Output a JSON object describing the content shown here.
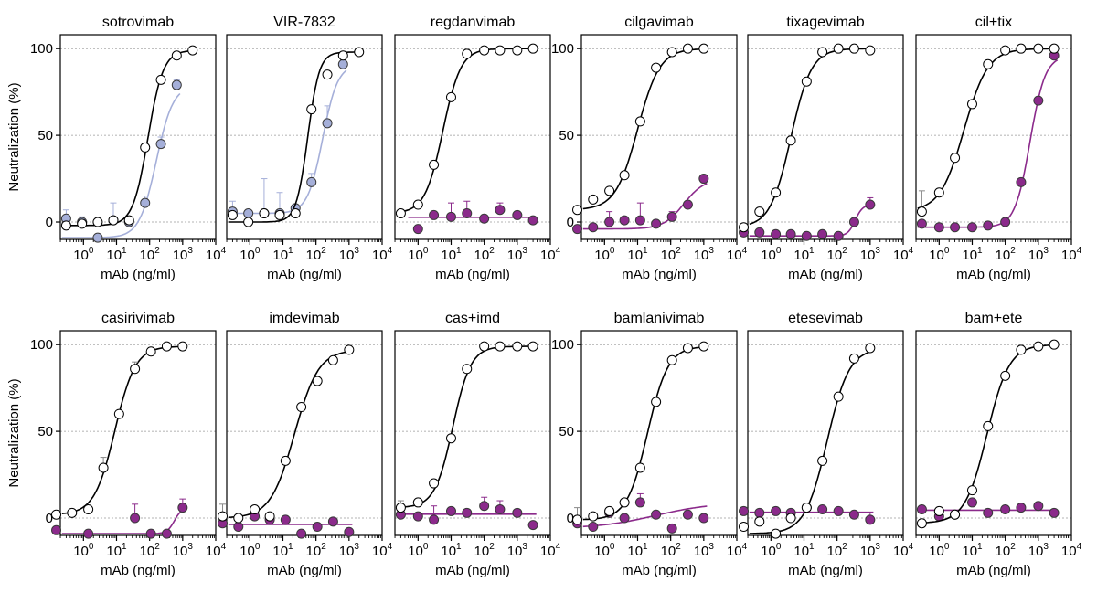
{
  "y_axis": {
    "label": "Neutralization (%)",
    "ticks": [
      "0",
      "50",
      "100"
    ],
    "tick_values": [
      0,
      50,
      100
    ],
    "ylim": [
      -10,
      108
    ]
  },
  "x_axis": {
    "label": "mAb (ng/ml)",
    "base": "10",
    "exponents": [
      "0",
      "1",
      "2",
      "3",
      "4"
    ],
    "scale": "log"
  },
  "colors": {
    "control": "#ffffff",
    "mutant": "#8b2a8b",
    "mutant_alt": "#9ea8d6",
    "curve_control": "#000000",
    "gridline": "#9a9a9a"
  },
  "chart_data": [
    {
      "type": "scatter",
      "title": "sotrovimab",
      "series": [
        {
          "fill": "open",
          "line": "#000000",
          "x": [
            0.3,
            0.9,
            2.7,
            8,
            24,
            73,
            220,
            660,
            2000
          ],
          "y": [
            -2,
            -1,
            0,
            1,
            1,
            43,
            82,
            96,
            99
          ],
          "err": [
            0,
            0,
            0,
            0,
            0,
            0,
            0,
            0,
            0
          ]
        },
        {
          "fill": "#a5afd9",
          "line": "#a5afd9",
          "x": [
            0.3,
            0.9,
            2.7,
            8,
            24,
            73,
            220,
            660
          ],
          "y": [
            2,
            0,
            -9,
            1,
            0,
            11,
            45,
            79
          ],
          "err": [
            5,
            3,
            0,
            10,
            0,
            4,
            4,
            3
          ]
        }
      ]
    },
    {
      "type": "scatter",
      "title": "VIR-7832",
      "series": [
        {
          "fill": "open",
          "line": "#000000",
          "x": [
            0.3,
            0.9,
            2.7,
            8,
            24,
            73,
            220,
            660,
            2000
          ],
          "y": [
            4,
            0,
            5,
            4,
            5,
            65,
            85,
            96,
            98
          ],
          "err": [
            0,
            0,
            0,
            0,
            0,
            0,
            0,
            0,
            0
          ]
        },
        {
          "fill": "#a5afd9",
          "line": "#a5afd9",
          "x": [
            0.3,
            0.9,
            2.7,
            8,
            24,
            73,
            220,
            660
          ],
          "y": [
            6,
            5,
            5,
            5,
            8,
            23,
            57,
            91
          ],
          "err": [
            6,
            0,
            20,
            12,
            0,
            5,
            10,
            5
          ]
        }
      ]
    },
    {
      "type": "scatter",
      "title": "regdanvimab",
      "series": [
        {
          "fill": "open",
          "line": "#000000",
          "x": [
            0.3,
            1,
            3,
            10,
            30,
            100,
            300,
            1000,
            3000
          ],
          "y": [
            5,
            10,
            33,
            72,
            97,
            99,
            99,
            99,
            100
          ],
          "err": [
            0,
            0,
            0,
            0,
            0,
            0,
            0,
            0,
            0
          ]
        },
        {
          "fill": "#8b2a8b",
          "line": "#8b2a8b",
          "x": [
            1,
            3,
            10,
            30,
            100,
            300,
            1000,
            3000
          ],
          "y": [
            -4,
            4,
            3,
            5,
            2,
            7,
            4,
            1
          ],
          "err": [
            0,
            0,
            8,
            7,
            0,
            4,
            0,
            0
          ]
        }
      ]
    },
    {
      "type": "scatter",
      "title": "cilgavimab",
      "series": [
        {
          "fill": "open",
          "line": "#000000",
          "x": [
            0.15,
            0.45,
            1.4,
            4,
            12,
            36,
            110,
            330,
            1000
          ],
          "y": [
            7,
            13,
            18,
            27,
            58,
            89,
            98,
            100,
            100
          ],
          "err": [
            0,
            0,
            0,
            0,
            0,
            0,
            0,
            0,
            0
          ]
        },
        {
          "fill": "#8b2a8b",
          "line": "#8b2a8b",
          "x": [
            0.15,
            0.45,
            1.4,
            4,
            12,
            36,
            110,
            330,
            1000
          ],
          "y": [
            -4,
            -3,
            0,
            1,
            1,
            -1,
            3,
            10,
            25
          ],
          "err": [
            0,
            0,
            6,
            0,
            10,
            0,
            3,
            0,
            0
          ]
        }
      ]
    },
    {
      "type": "scatter",
      "title": "tixagevimab",
      "series": [
        {
          "fill": "open",
          "line": "#000000",
          "x": [
            0.15,
            0.45,
            1.4,
            4,
            12,
            36,
            110,
            330,
            1000
          ],
          "y": [
            -3,
            6,
            17,
            47,
            81,
            98,
            100,
            100,
            99
          ],
          "err": [
            0,
            0,
            0,
            0,
            0,
            0,
            0,
            0,
            0
          ]
        },
        {
          "fill": "#8b2a8b",
          "line": "#8b2a8b",
          "x": [
            0.15,
            0.45,
            1.4,
            4,
            12,
            36,
            110,
            330,
            1000
          ],
          "y": [
            -6,
            -6,
            -7,
            -7,
            -8,
            -7,
            -8,
            0,
            10
          ],
          "err": [
            0,
            0,
            0,
            0,
            0,
            0,
            0,
            0,
            4
          ]
        }
      ]
    },
    {
      "type": "scatter",
      "title": "cil+tix",
      "series": [
        {
          "fill": "open",
          "line": "#000000",
          "x": [
            0.3,
            1,
            3,
            10,
            30,
            100,
            300,
            1000,
            3000
          ],
          "y": [
            6,
            17,
            37,
            68,
            91,
            99,
            100,
            100,
            100
          ],
          "err": [
            12,
            0,
            0,
            0,
            0,
            0,
            0,
            0,
            0
          ]
        },
        {
          "fill": "#8b2a8b",
          "line": "#8b2a8b",
          "x": [
            0.3,
            1,
            3,
            10,
            30,
            100,
            300,
            1000,
            3000
          ],
          "y": [
            -1,
            -3,
            -3,
            -3,
            -2,
            0,
            23,
            70,
            96
          ],
          "err": [
            0,
            0,
            0,
            0,
            0,
            0,
            0,
            0,
            0
          ]
        }
      ]
    },
    {
      "type": "scatter",
      "title": "casirivimab",
      "series": [
        {
          "fill": "open",
          "line": "#000000",
          "x": [
            0.15,
            0.45,
            1.4,
            4,
            12,
            36,
            110,
            330,
            1000
          ],
          "y": [
            2,
            3,
            5,
            29,
            60,
            86,
            96,
            99,
            99
          ],
          "err": [
            0,
            0,
            0,
            6,
            0,
            4,
            0,
            0,
            0
          ]
        },
        {
          "fill": "#8b2a8b",
          "line": "#8b2a8b",
          "x": [
            0.15,
            1.4,
            36,
            110,
            330,
            1000
          ],
          "y": [
            -7,
            -9,
            0,
            -9,
            -9,
            6
          ],
          "err": [
            0,
            0,
            8,
            0,
            0,
            5
          ]
        }
      ]
    },
    {
      "type": "scatter",
      "title": "imdevimab",
      "series": [
        {
          "fill": "open",
          "line": "#000000",
          "x": [
            0.15,
            0.45,
            1.4,
            4,
            12,
            36,
            110,
            330,
            1000
          ],
          "y": [
            1,
            0,
            5,
            1,
            33,
            64,
            79,
            91,
            97
          ],
          "err": [
            7,
            0,
            0,
            0,
            0,
            0,
            0,
            0,
            0
          ]
        },
        {
          "fill": "#8b2a8b",
          "line": "#8b2a8b",
          "x": [
            0.15,
            0.45,
            1.4,
            4,
            12,
            36,
            110,
            330,
            1000
          ],
          "y": [
            -3,
            -5,
            1,
            -1,
            -1,
            -9,
            -5,
            -2,
            -8
          ],
          "err": [
            0,
            0,
            0,
            0,
            0,
            0,
            0,
            0,
            0
          ]
        }
      ]
    },
    {
      "type": "scatter",
      "title": "cas+imd",
      "series": [
        {
          "fill": "open",
          "line": "#000000",
          "x": [
            0.3,
            1,
            3,
            10,
            30,
            100,
            300,
            1000,
            3000
          ],
          "y": [
            6,
            9,
            20,
            46,
            86,
            99,
            99,
            99,
            99
          ],
          "err": [
            4,
            0,
            0,
            0,
            0,
            0,
            0,
            0,
            0
          ]
        },
        {
          "fill": "#8b2a8b",
          "line": "#8b2a8b",
          "x": [
            0.3,
            1,
            3,
            10,
            30,
            100,
            300,
            1000,
            3000
          ],
          "y": [
            2,
            1,
            -1,
            4,
            3,
            7,
            5,
            3,
            -4
          ],
          "err": [
            4,
            0,
            8,
            0,
            0,
            5,
            5,
            0,
            0
          ]
        }
      ]
    },
    {
      "type": "scatter",
      "title": "bamlanivimab",
      "series": [
        {
          "fill": "open",
          "line": "#000000",
          "x": [
            0.15,
            0.45,
            1.4,
            4,
            12,
            36,
            110,
            330,
            1000
          ],
          "y": [
            -1,
            1,
            4,
            9,
            29,
            67,
            91,
            98,
            99
          ],
          "err": [
            7,
            0,
            0,
            0,
            0,
            0,
            0,
            0,
            0
          ]
        },
        {
          "fill": "#8b2a8b",
          "line": "#8b2a8b",
          "x": [
            0.15,
            0.45,
            1.4,
            4,
            12,
            36,
            110,
            330,
            1000
          ],
          "y": [
            -3,
            -5,
            3,
            0,
            9,
            2,
            -6,
            2,
            0
          ],
          "err": [
            0,
            0,
            0,
            0,
            5,
            0,
            0,
            0,
            0
          ]
        }
      ]
    },
    {
      "type": "scatter",
      "title": "etesevimab",
      "series": [
        {
          "fill": "open",
          "line": "#000000",
          "x": [
            0.15,
            0.45,
            1.4,
            4,
            12,
            36,
            110,
            330,
            1000
          ],
          "y": [
            -5,
            -2,
            -9,
            0,
            6,
            33,
            70,
            92,
            98
          ],
          "err": [
            0,
            0,
            0,
            0,
            0,
            0,
            0,
            0,
            0
          ]
        },
        {
          "fill": "#8b2a8b",
          "line": "#8b2a8b",
          "x": [
            0.15,
            0.45,
            1.4,
            4,
            12,
            36,
            110,
            330,
            1000
          ],
          "y": [
            4,
            3,
            4,
            3,
            6,
            5,
            4,
            2,
            -1
          ],
          "err": [
            0,
            0,
            0,
            0,
            0,
            0,
            0,
            0,
            4
          ]
        }
      ]
    },
    {
      "type": "scatter",
      "title": "bam+ete",
      "series": [
        {
          "fill": "open",
          "line": "#000000",
          "x": [
            0.3,
            1,
            3,
            10,
            30,
            100,
            300,
            1000,
            3000
          ],
          "y": [
            -3,
            4,
            2,
            16,
            53,
            82,
            97,
            99,
            100
          ],
          "err": [
            0,
            0,
            0,
            0,
            0,
            0,
            0,
            0,
            0
          ]
        },
        {
          "fill": "#8b2a8b",
          "line": "#8b2a8b",
          "x": [
            0.3,
            1,
            3,
            10,
            30,
            100,
            300,
            1000,
            3000
          ],
          "y": [
            5,
            1,
            2,
            9,
            3,
            5,
            6,
            7,
            3
          ],
          "err": [
            0,
            0,
            0,
            0,
            0,
            0,
            0,
            0,
            0
          ]
        }
      ]
    }
  ]
}
